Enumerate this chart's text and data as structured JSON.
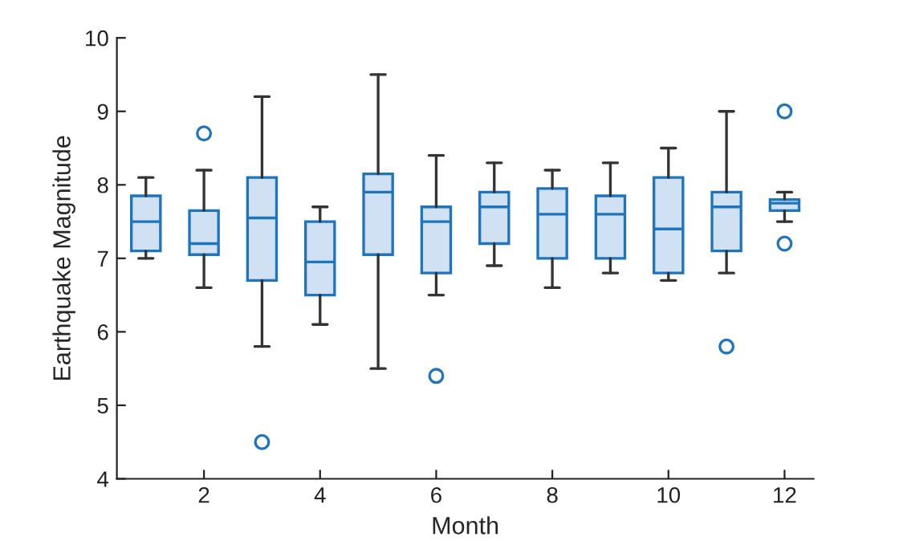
{
  "chart_data": {
    "type": "box",
    "xlabel": "Month",
    "ylabel": "Earthquake Magnitude",
    "x": [
      1,
      2,
      3,
      4,
      5,
      6,
      7,
      8,
      9,
      10,
      11,
      12
    ],
    "boxes": [
      {
        "low": 7.0,
        "q1": 7.1,
        "median": 7.5,
        "q3": 7.85,
        "high": 8.1
      },
      {
        "low": 6.6,
        "q1": 7.05,
        "median": 7.2,
        "q3": 7.65,
        "high": 8.2,
        "outliers": [
          8.7
        ]
      },
      {
        "low": 5.8,
        "q1": 6.7,
        "median": 7.55,
        "q3": 8.1,
        "high": 9.2,
        "outliers": [
          4.5
        ]
      },
      {
        "low": 6.1,
        "q1": 6.5,
        "median": 6.95,
        "q3": 7.5,
        "high": 7.7
      },
      {
        "low": 5.5,
        "q1": 7.05,
        "median": 7.9,
        "q3": 8.15,
        "high": 9.5
      },
      {
        "low": 6.5,
        "q1": 6.8,
        "median": 7.5,
        "q3": 7.7,
        "high": 8.4,
        "outliers": [
          5.4
        ]
      },
      {
        "low": 6.9,
        "q1": 7.2,
        "median": 7.7,
        "q3": 7.9,
        "high": 8.3
      },
      {
        "low": 6.6,
        "q1": 7.0,
        "median": 7.6,
        "q3": 7.95,
        "high": 8.2
      },
      {
        "low": 6.8,
        "q1": 7.0,
        "median": 7.6,
        "q3": 7.85,
        "high": 8.3
      },
      {
        "low": 6.7,
        "q1": 6.8,
        "median": 7.4,
        "q3": 8.1,
        "high": 8.5
      },
      {
        "low": 6.8,
        "q1": 7.1,
        "median": 7.7,
        "q3": 7.9,
        "high": 9.0,
        "outliers": [
          5.8
        ]
      },
      {
        "low": 7.5,
        "q1": 7.65,
        "median": 7.75,
        "q3": 7.8,
        "high": 7.9,
        "outliers": [
          9.0,
          7.2
        ]
      }
    ],
    "color": "#1f74c0",
    "xlim": [
      0.5,
      12.5
    ],
    "xticks": [
      2,
      4,
      6,
      8,
      10,
      12
    ],
    "ylim": [
      4,
      10
    ],
    "yticks": [
      4,
      5,
      6,
      7,
      8,
      9,
      10
    ],
    "grid": false
  }
}
